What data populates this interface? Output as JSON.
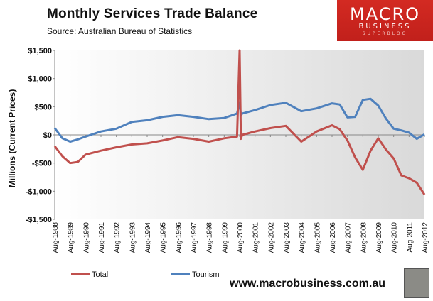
{
  "title": "Monthly  Services Trade  Balance",
  "source": "Source:  Australian Bureau of Statistics",
  "logo": {
    "main": "MACRO",
    "sub": "BUSINESS",
    "tag": "SUPERBLOG"
  },
  "url": "www.macrobusiness.com.au",
  "colors": {
    "total": "#c0504d",
    "tourism": "#4f81bd"
  },
  "chart_data": {
    "type": "line",
    "title": "Monthly  Services Trade  Balance",
    "ylabel": "Millions (Current Prices)",
    "ylim": [
      -1500,
      1500
    ],
    "yticks": [
      "$1,500",
      "$1,000",
      "$500",
      "$0",
      "-$500",
      "-$1,000",
      "-$1,500"
    ],
    "xticks": [
      "Aug-1988",
      "Aug-1989",
      "Aug-1990",
      "Aug-1991",
      "Aug-1992",
      "Aug-1993",
      "Aug-1994",
      "Aug-1995",
      "Aug-1996",
      "Aug-1997",
      "Aug-1998",
      "Aug-1999",
      "Aug-2000",
      "Aug-2001",
      "Aug-2002",
      "Aug-2003",
      "Aug-2004",
      "Aug-2005",
      "Aug-2006",
      "Aug-2007",
      "Aug-2008",
      "Aug-2009",
      "Aug-2010",
      "Aug-2011",
      "Aug-2012"
    ],
    "grid": false,
    "legend": "bottom-left",
    "series": [
      {
        "name": "Total",
        "x": [
          "1988-08",
          "1989-02",
          "1989-08",
          "1990-02",
          "1990-08",
          "1991-08",
          "1992-08",
          "1993-08",
          "1994-08",
          "1995-08",
          "1996-08",
          "1997-08",
          "1998-08",
          "1999-08",
          "2000-06",
          "2000-08",
          "2000-09",
          "2000-10",
          "2001-08",
          "2002-08",
          "2003-08",
          "2004-08",
          "2005-08",
          "2006-08",
          "2007-02",
          "2007-08",
          "2008-02",
          "2008-08",
          "2009-02",
          "2009-08",
          "2010-02",
          "2010-08",
          "2011-02",
          "2011-08",
          "2012-02",
          "2012-08"
        ],
        "values": [
          -200,
          -380,
          -500,
          -480,
          -350,
          -280,
          -220,
          -170,
          -150,
          -100,
          -40,
          -70,
          -120,
          -60,
          -30,
          1500,
          -70,
          0,
          60,
          120,
          160,
          -120,
          60,
          170,
          100,
          -100,
          -400,
          -620,
          -280,
          -60,
          -260,
          -420,
          -720,
          -770,
          -850,
          -1060
        ]
      },
      {
        "name": "Tourism",
        "x": [
          "1988-08",
          "1989-02",
          "1989-08",
          "1990-02",
          "1990-08",
          "1991-08",
          "1992-08",
          "1993-08",
          "1994-08",
          "1995-08",
          "1996-08",
          "1997-08",
          "1998-08",
          "1999-08",
          "2000-06",
          "2000-08",
          "2000-09",
          "2000-10",
          "2001-08",
          "2002-08",
          "2003-08",
          "2004-08",
          "2005-08",
          "2006-08",
          "2007-02",
          "2007-08",
          "2008-02",
          "2008-08",
          "2009-02",
          "2009-08",
          "2010-02",
          "2010-08",
          "2011-02",
          "2011-08",
          "2012-02",
          "2012-08"
        ],
        "values": [
          120,
          -60,
          -120,
          -80,
          -30,
          60,
          110,
          230,
          260,
          320,
          350,
          320,
          280,
          300,
          380,
          580,
          340,
          380,
          440,
          530,
          570,
          420,
          470,
          560,
          540,
          310,
          320,
          620,
          640,
          520,
          290,
          110,
          80,
          40,
          -70,
          10
        ]
      }
    ]
  }
}
